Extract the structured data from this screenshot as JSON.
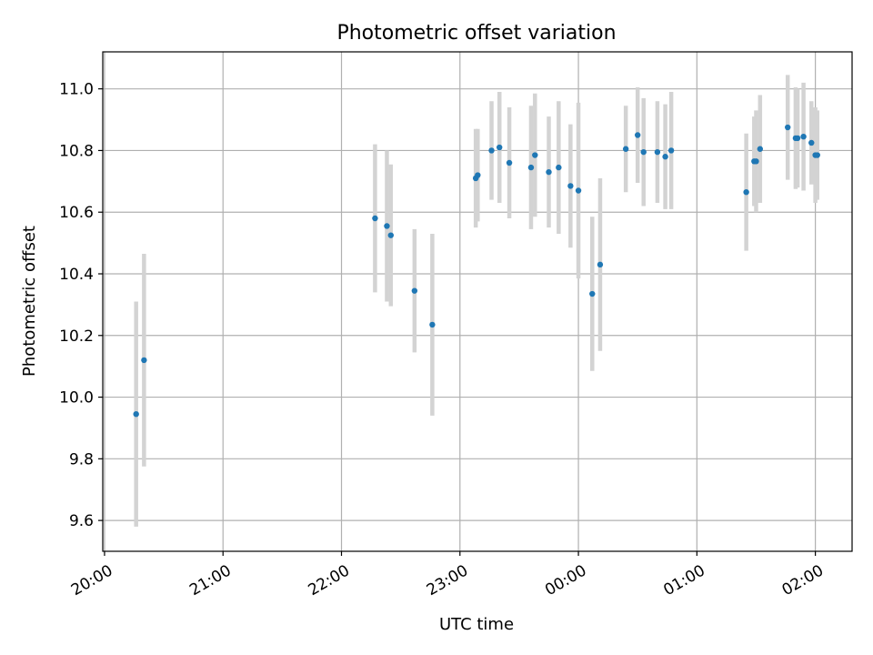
{
  "chart_data": {
    "type": "scatter",
    "title": "Photometric offset variation",
    "xlabel": "UTC time",
    "ylabel": "Photometric offset",
    "x_tick_labels": [
      "20:00",
      "21:00",
      "22:00",
      "23:00",
      "00:00",
      "01:00",
      "02:00"
    ],
    "x_tick_hours": [
      20,
      21,
      22,
      23,
      24,
      25,
      26
    ],
    "x_range_hours": [
      19.985,
      26.31
    ],
    "y_ticks": [
      9.6,
      9.8,
      10.0,
      10.2,
      10.4,
      10.6,
      10.8,
      11.0
    ],
    "y_tick_labels": [
      "9.6",
      "9.8",
      "10.0",
      "10.2",
      "10.4",
      "10.6",
      "10.8",
      "11.0"
    ],
    "ylim": [
      9.5,
      11.12
    ],
    "grid": true,
    "colors": {
      "point": "#1f77b4",
      "errorbar": "#d3d3d3"
    },
    "points": [
      {
        "time": "20:16",
        "y": 9.945,
        "err": 0.365
      },
      {
        "time": "20:20",
        "y": 10.12,
        "err": 0.345
      },
      {
        "time": "22:17",
        "y": 10.58,
        "err": 0.24
      },
      {
        "time": "22:23",
        "y": 10.555,
        "err": 0.245
      },
      {
        "time": "22:25",
        "y": 10.525,
        "err": 0.23
      },
      {
        "time": "22:37",
        "y": 10.345,
        "err": 0.2
      },
      {
        "time": "22:46",
        "y": 10.235,
        "err": 0.295
      },
      {
        "time": "23:08",
        "y": 10.71,
        "err": 0.16
      },
      {
        "time": "23:09",
        "y": 10.72,
        "err": 0.15
      },
      {
        "time": "23:16",
        "y": 10.8,
        "err": 0.16
      },
      {
        "time": "23:20",
        "y": 10.81,
        "err": 0.18
      },
      {
        "time": "23:25",
        "y": 10.76,
        "err": 0.18
      },
      {
        "time": "23:36",
        "y": 10.745,
        "err": 0.2
      },
      {
        "time": "23:38",
        "y": 10.785,
        "err": 0.2
      },
      {
        "time": "23:45",
        "y": 10.73,
        "err": 0.18
      },
      {
        "time": "23:50",
        "y": 10.745,
        "err": 0.215
      },
      {
        "time": "23:56",
        "y": 10.685,
        "err": 0.2
      },
      {
        "time": "00:00",
        "y": 10.67,
        "err": 0.285
      },
      {
        "time": "00:07",
        "y": 10.335,
        "err": 0.25
      },
      {
        "time": "00:11",
        "y": 10.43,
        "err": 0.28
      },
      {
        "time": "00:24",
        "y": 10.805,
        "err": 0.14
      },
      {
        "time": "00:30",
        "y": 10.85,
        "err": 0.155
      },
      {
        "time": "00:33",
        "y": 10.795,
        "err": 0.175
      },
      {
        "time": "00:40",
        "y": 10.795,
        "err": 0.165
      },
      {
        "time": "00:44",
        "y": 10.78,
        "err": 0.17
      },
      {
        "time": "00:47",
        "y": 10.8,
        "err": 0.19
      },
      {
        "time": "01:25",
        "y": 10.665,
        "err": 0.19
      },
      {
        "time": "01:29",
        "y": 10.765,
        "err": 0.145
      },
      {
        "time": "01:30",
        "y": 10.765,
        "err": 0.165
      },
      {
        "time": "01:32",
        "y": 10.805,
        "err": 0.175
      },
      {
        "time": "01:46",
        "y": 10.875,
        "err": 0.17
      },
      {
        "time": "01:50",
        "y": 10.84,
        "err": 0.165
      },
      {
        "time": "01:51",
        "y": 10.84,
        "err": 0.16
      },
      {
        "time": "01:54",
        "y": 10.845,
        "err": 0.175
      },
      {
        "time": "01:58",
        "y": 10.825,
        "err": 0.135
      },
      {
        "time": "02:00",
        "y": 10.785,
        "err": 0.155
      },
      {
        "time": "02:01",
        "y": 10.785,
        "err": 0.145
      }
    ]
  }
}
